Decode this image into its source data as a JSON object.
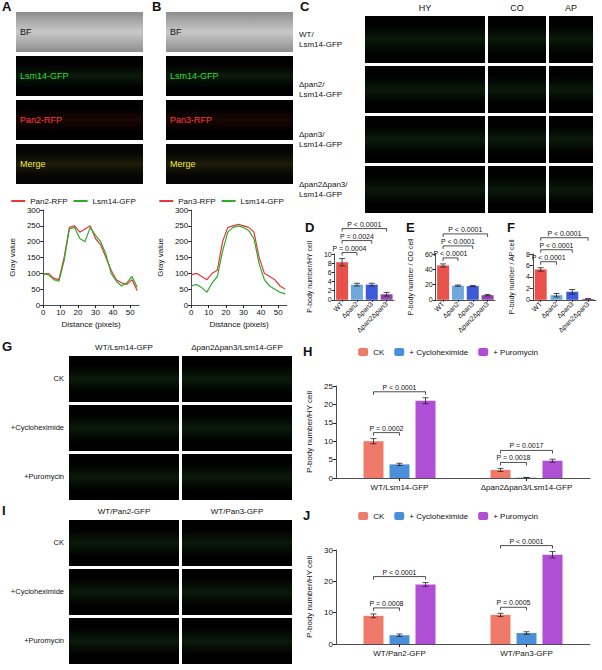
{
  "image_panels": [
    {
      "letter": "A",
      "rows": [
        "BF",
        "Lsm14-GFP",
        "Pan2-RFP",
        "Merge"
      ]
    },
    {
      "letter": "B",
      "rows": [
        "BF",
        "Lsm14-GFP",
        "Pan3-RFP",
        "Merge"
      ]
    },
    {
      "letter": "C",
      "columns": [
        "HY",
        "CO",
        "AP"
      ],
      "rows": [
        "WT/Lsm14-GFP",
        "Δpan2/Lsm14-GFP",
        "Δpan3/Lsm14-GFP",
        "Δpan2Δpan3/Lsm14-GFP"
      ]
    },
    {
      "letter": "G",
      "columns": [
        "WT/Lsm14-GFP",
        "Δpan2Δpan3/Lsm14-GFP"
      ],
      "rows": [
        "CK",
        "+Cycloheximide",
        "+Puromycin"
      ]
    },
    {
      "letter": "I",
      "columns": [
        "WT/Pan2-GFP",
        "WT/Pan3-GFP"
      ],
      "rows": [
        "CK",
        "+Cycloheximide",
        "+Puromycin"
      ]
    }
  ],
  "chart_data": [
    {
      "type": "line",
      "x": [
        0,
        3,
        6,
        9,
        12,
        15,
        18,
        21,
        24,
        27,
        30,
        33,
        36,
        39,
        42,
        45,
        48,
        51,
        54
      ],
      "series": [
        {
          "name": "Pan2-RFP",
          "color": "#e53935",
          "values": [
            95,
            100,
            85,
            80,
            150,
            245,
            250,
            230,
            240,
            250,
            210,
            190,
            150,
            110,
            80,
            70,
            65,
            80,
            45
          ]
        },
        {
          "name": "Lsm14-GFP",
          "color": "#2eaa2e",
          "values": [
            100,
            95,
            80,
            75,
            140,
            240,
            245,
            210,
            200,
            245,
            220,
            200,
            160,
            100,
            75,
            60,
            70,
            90,
            55
          ]
        }
      ],
      "x_label": "Distance (pixels)",
      "y_label": "Gray value",
      "xlim": [
        0,
        55
      ],
      "xticks": [
        0,
        10,
        20,
        30,
        40,
        50
      ],
      "ylim": [
        0,
        300
      ],
      "yticks": [
        0,
        50,
        100,
        150,
        200,
        250,
        300
      ],
      "legend": "top"
    },
    {
      "type": "line",
      "x": [
        0,
        3,
        6,
        9,
        12,
        15,
        18,
        21,
        24,
        27,
        30,
        33,
        36,
        39,
        42,
        45,
        48,
        51,
        54
      ],
      "series": [
        {
          "name": "Pan3-RFP",
          "color": "#e53935",
          "values": [
            95,
            100,
            90,
            80,
            100,
            110,
            200,
            245,
            250,
            255,
            250,
            245,
            230,
            150,
            100,
            90,
            80,
            60,
            50
          ]
        },
        {
          "name": "Lsm14-GFP",
          "color": "#2eaa2e",
          "values": [
            60,
            65,
            55,
            40,
            70,
            90,
            170,
            230,
            245,
            250,
            245,
            235,
            210,
            130,
            80,
            60,
            50,
            40,
            35
          ]
        }
      ],
      "x_label": "Distance (pixels)",
      "y_label": "Gray value",
      "xlim": [
        0,
        55
      ],
      "xticks": [
        0,
        10,
        20,
        30,
        40,
        50
      ],
      "ylim": [
        0,
        300
      ],
      "yticks": [
        0,
        50,
        100,
        150,
        200,
        250,
        300
      ],
      "legend": "top"
    },
    {
      "type": "bar",
      "title": "D",
      "categories": [
        "WT",
        "Δpan2",
        "Δpan3",
        "Δpan2Δpan3"
      ],
      "values": [
        8.2,
        3.3,
        3.3,
        1.2
      ],
      "errors": [
        0.8,
        0.3,
        0.3,
        0.4
      ],
      "colors": [
        "#e8524a",
        "#6fa8dc",
        "#3d5bd9",
        "#8e44ad"
      ],
      "y_label": "P-body number/HY cell",
      "ylim": [
        0,
        10
      ],
      "yticks": [
        0,
        2,
        4,
        6,
        8,
        10
      ],
      "comparisons": [
        {
          "from": "WT",
          "to": "Δpan2",
          "label": "P = 0.0004"
        },
        {
          "from": "WT",
          "to": "Δpan3",
          "label": "P = 0.0024"
        },
        {
          "from": "WT",
          "to": "Δpan2Δpan3",
          "label": "P < 0.0001"
        }
      ]
    },
    {
      "type": "bar",
      "title": "E",
      "categories": [
        "WT",
        "Δpan2",
        "Δpan3",
        "Δpan2Δpan3"
      ],
      "values": [
        45,
        18.5,
        18,
        6
      ],
      "errors": [
        2,
        0.8,
        0.8,
        0.8
      ],
      "colors": [
        "#e8524a",
        "#6fa8dc",
        "#3d5bd9",
        "#8e44ad"
      ],
      "y_label": "P-body number / CO cell",
      "ylim": [
        0,
        60
      ],
      "yticks": [
        0,
        20,
        40,
        60
      ],
      "comparisons": [
        {
          "from": "WT",
          "to": "Δpan2",
          "label": "P < 0.0001"
        },
        {
          "from": "WT",
          "to": "Δpan3",
          "label": "P < 0.0001"
        },
        {
          "from": "WT",
          "to": "Δpan2Δpan3",
          "label": "P < 0.0001"
        }
      ]
    },
    {
      "type": "bar",
      "title": "F",
      "categories": [
        "WT",
        "Δpan2",
        "Δpan3",
        "Δpan2Δpan3"
      ],
      "values": [
        5.3,
        0.8,
        1.4,
        0.15
      ],
      "errors": [
        0.3,
        0.3,
        0.4,
        0.05
      ],
      "colors": [
        "#e8524a",
        "#6fa8dc",
        "#3d5bd9",
        "#8e44ad"
      ],
      "y_label": "P-body number / AP cell",
      "ylim": [
        0,
        8
      ],
      "yticks": [
        0,
        2,
        4,
        6,
        8
      ],
      "comparisons": [
        {
          "from": "WT",
          "to": "Δpan2",
          "label": "P < 0.0001"
        },
        {
          "from": "WT",
          "to": "Δpan3",
          "label": "P < 0.0001"
        },
        {
          "from": "WT",
          "to": "Δpan2Δpan3",
          "label": "P < 0.0001"
        }
      ]
    },
    {
      "type": "bar",
      "title": "H",
      "categories": [
        "WT/Lsm14-GFP",
        "Δpan2Δpan3/Lsm14-GFP"
      ],
      "series": [
        {
          "name": "CK",
          "color": "#f07a6a",
          "values": [
            10,
            2.2
          ],
          "errors": [
            0.7,
            0.4
          ]
        },
        {
          "name": "+ Cycloheximide",
          "color": "#4a90d9",
          "values": [
            3.7,
            0.1
          ],
          "errors": [
            0.3,
            0.05
          ]
        },
        {
          "name": "+ Puromycin",
          "color": "#b04fd6",
          "values": [
            21,
            4.7
          ],
          "errors": [
            0.8,
            0.4
          ]
        }
      ],
      "y_label": "P-body number/HY cell",
      "ylim": [
        0,
        25
      ],
      "yticks": [
        0,
        5,
        10,
        15,
        20,
        25
      ],
      "legend": "top",
      "comparisons": [
        {
          "category": "WT/Lsm14-GFP",
          "from": "CK",
          "to": "+ Cycloheximide",
          "label": "P = 0.0002"
        },
        {
          "category": "WT/Lsm14-GFP",
          "from": "CK",
          "to": "+ Puromycin",
          "label": "P < 0.0001"
        },
        {
          "category": "Δpan2Δpan3/Lsm14-GFP",
          "from": "CK",
          "to": "+ Cycloheximide",
          "label": "P = 0.0018"
        },
        {
          "category": "Δpan2Δpan3/Lsm14-GFP",
          "from": "CK",
          "to": "+ Puromycin",
          "label": "P = 0.0017"
        }
      ]
    },
    {
      "type": "bar",
      "title": "J",
      "categories": [
        "WT/Pan2-GFP",
        "WT/Pan3-GFP"
      ],
      "series": [
        {
          "name": "CK",
          "color": "#f07a6a",
          "values": [
            9,
            9.3
          ],
          "errors": [
            0.6,
            0.5
          ]
        },
        {
          "name": "+ Cycloheximide",
          "color": "#4a90d9",
          "values": [
            2.8,
            3.5
          ],
          "errors": [
            0.4,
            0.4
          ]
        },
        {
          "name": "+ Puromycin",
          "color": "#b04fd6",
          "values": [
            19,
            28.5
          ],
          "errors": [
            0.6,
            1.0
          ]
        }
      ],
      "y_label": "P-body number/HY cell",
      "ylim": [
        0,
        30
      ],
      "yticks": [
        0,
        10,
        20,
        30
      ],
      "legend": "top",
      "comparisons": [
        {
          "category": "WT/Pan2-GFP",
          "from": "CK",
          "to": "+ Cycloheximide",
          "label": "P = 0.0008"
        },
        {
          "category": "WT/Pan2-GFP",
          "from": "CK",
          "to": "+ Puromycin",
          "label": "P < 0.0001"
        },
        {
          "category": "WT/Pan3-GFP",
          "from": "CK",
          "to": "+ Cycloheximide",
          "label": "P = 0.0005"
        },
        {
          "category": "WT/Pan3-GFP",
          "from": "CK",
          "to": "+ Puromycin",
          "label": "P < 0.0001"
        }
      ]
    }
  ]
}
